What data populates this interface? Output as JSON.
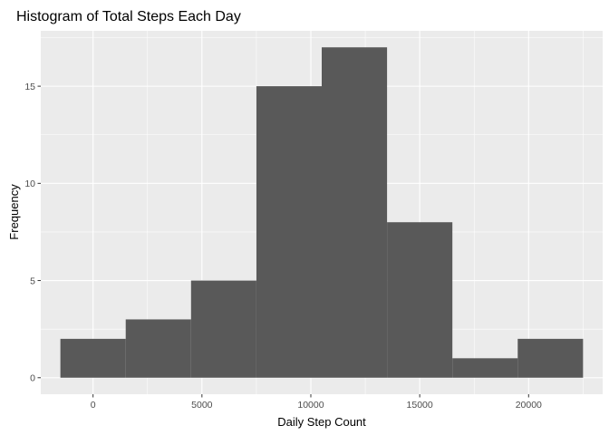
{
  "chart_data": {
    "type": "bar",
    "title": "Histogram of Total Steps Each Day",
    "xlabel": "Daily Step Count",
    "ylabel": "Frequency",
    "bin_width": 3000,
    "bins": [
      {
        "start": -1500,
        "end": 1500,
        "count": 2
      },
      {
        "start": 1500,
        "end": 4500,
        "count": 3
      },
      {
        "start": 4500,
        "end": 7500,
        "count": 5
      },
      {
        "start": 7500,
        "end": 10500,
        "count": 15
      },
      {
        "start": 10500,
        "end": 13500,
        "count": 17
      },
      {
        "start": 13500,
        "end": 16500,
        "count": 8
      },
      {
        "start": 16500,
        "end": 19500,
        "count": 1
      },
      {
        "start": 19500,
        "end": 22500,
        "count": 2
      }
    ],
    "xlim": [
      -2400,
      23400
    ],
    "ylim": [
      -0.85,
      17.85
    ],
    "x_ticks": [
      0,
      5000,
      10000,
      15000,
      20000
    ],
    "x_tick_labels": [
      "0",
      "5000",
      "10000",
      "15000",
      "20000"
    ],
    "y_ticks": [
      0,
      5,
      10,
      15
    ],
    "y_tick_labels": [
      "0",
      "5",
      "10",
      "15"
    ],
    "grid": true,
    "colors": {
      "panel_background": "#ebebeb",
      "grid_major": "#ffffff",
      "bar_fill": "#595959",
      "tick_color": "#333333"
    }
  }
}
